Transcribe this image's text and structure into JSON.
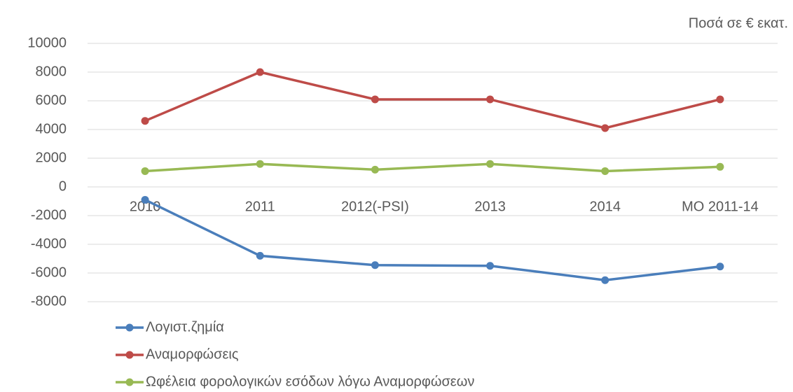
{
  "chart_data": {
    "type": "line",
    "note": "Ποσά σε € εκατ.",
    "categories": [
      "2010",
      "2011",
      "2012(-PSI)",
      "2013",
      "2014",
      "MO 2011-14"
    ],
    "series": [
      {
        "name": "Λογιστ.ζημία",
        "color": "#4a7ebb",
        "values": [
          -900,
          -4800,
          -5450,
          -5500,
          -6500,
          -5550
        ]
      },
      {
        "name": "Αναμορφώσεις",
        "color": "#be4b48",
        "values": [
          4600,
          8000,
          6100,
          6100,
          4100,
          6100
        ]
      },
      {
        "name": "Ωφέλεια φορολογικών εσόδων λόγω  Αναμορφώσεων",
        "color": "#98b954",
        "values": [
          1100,
          1600,
          1200,
          1600,
          1100,
          1400
        ]
      }
    ],
    "ylim": [
      -8000,
      10000
    ],
    "yticks": [
      -8000,
      -6000,
      -4000,
      -2000,
      0,
      2000,
      4000,
      6000,
      8000,
      10000
    ],
    "grid": true
  }
}
